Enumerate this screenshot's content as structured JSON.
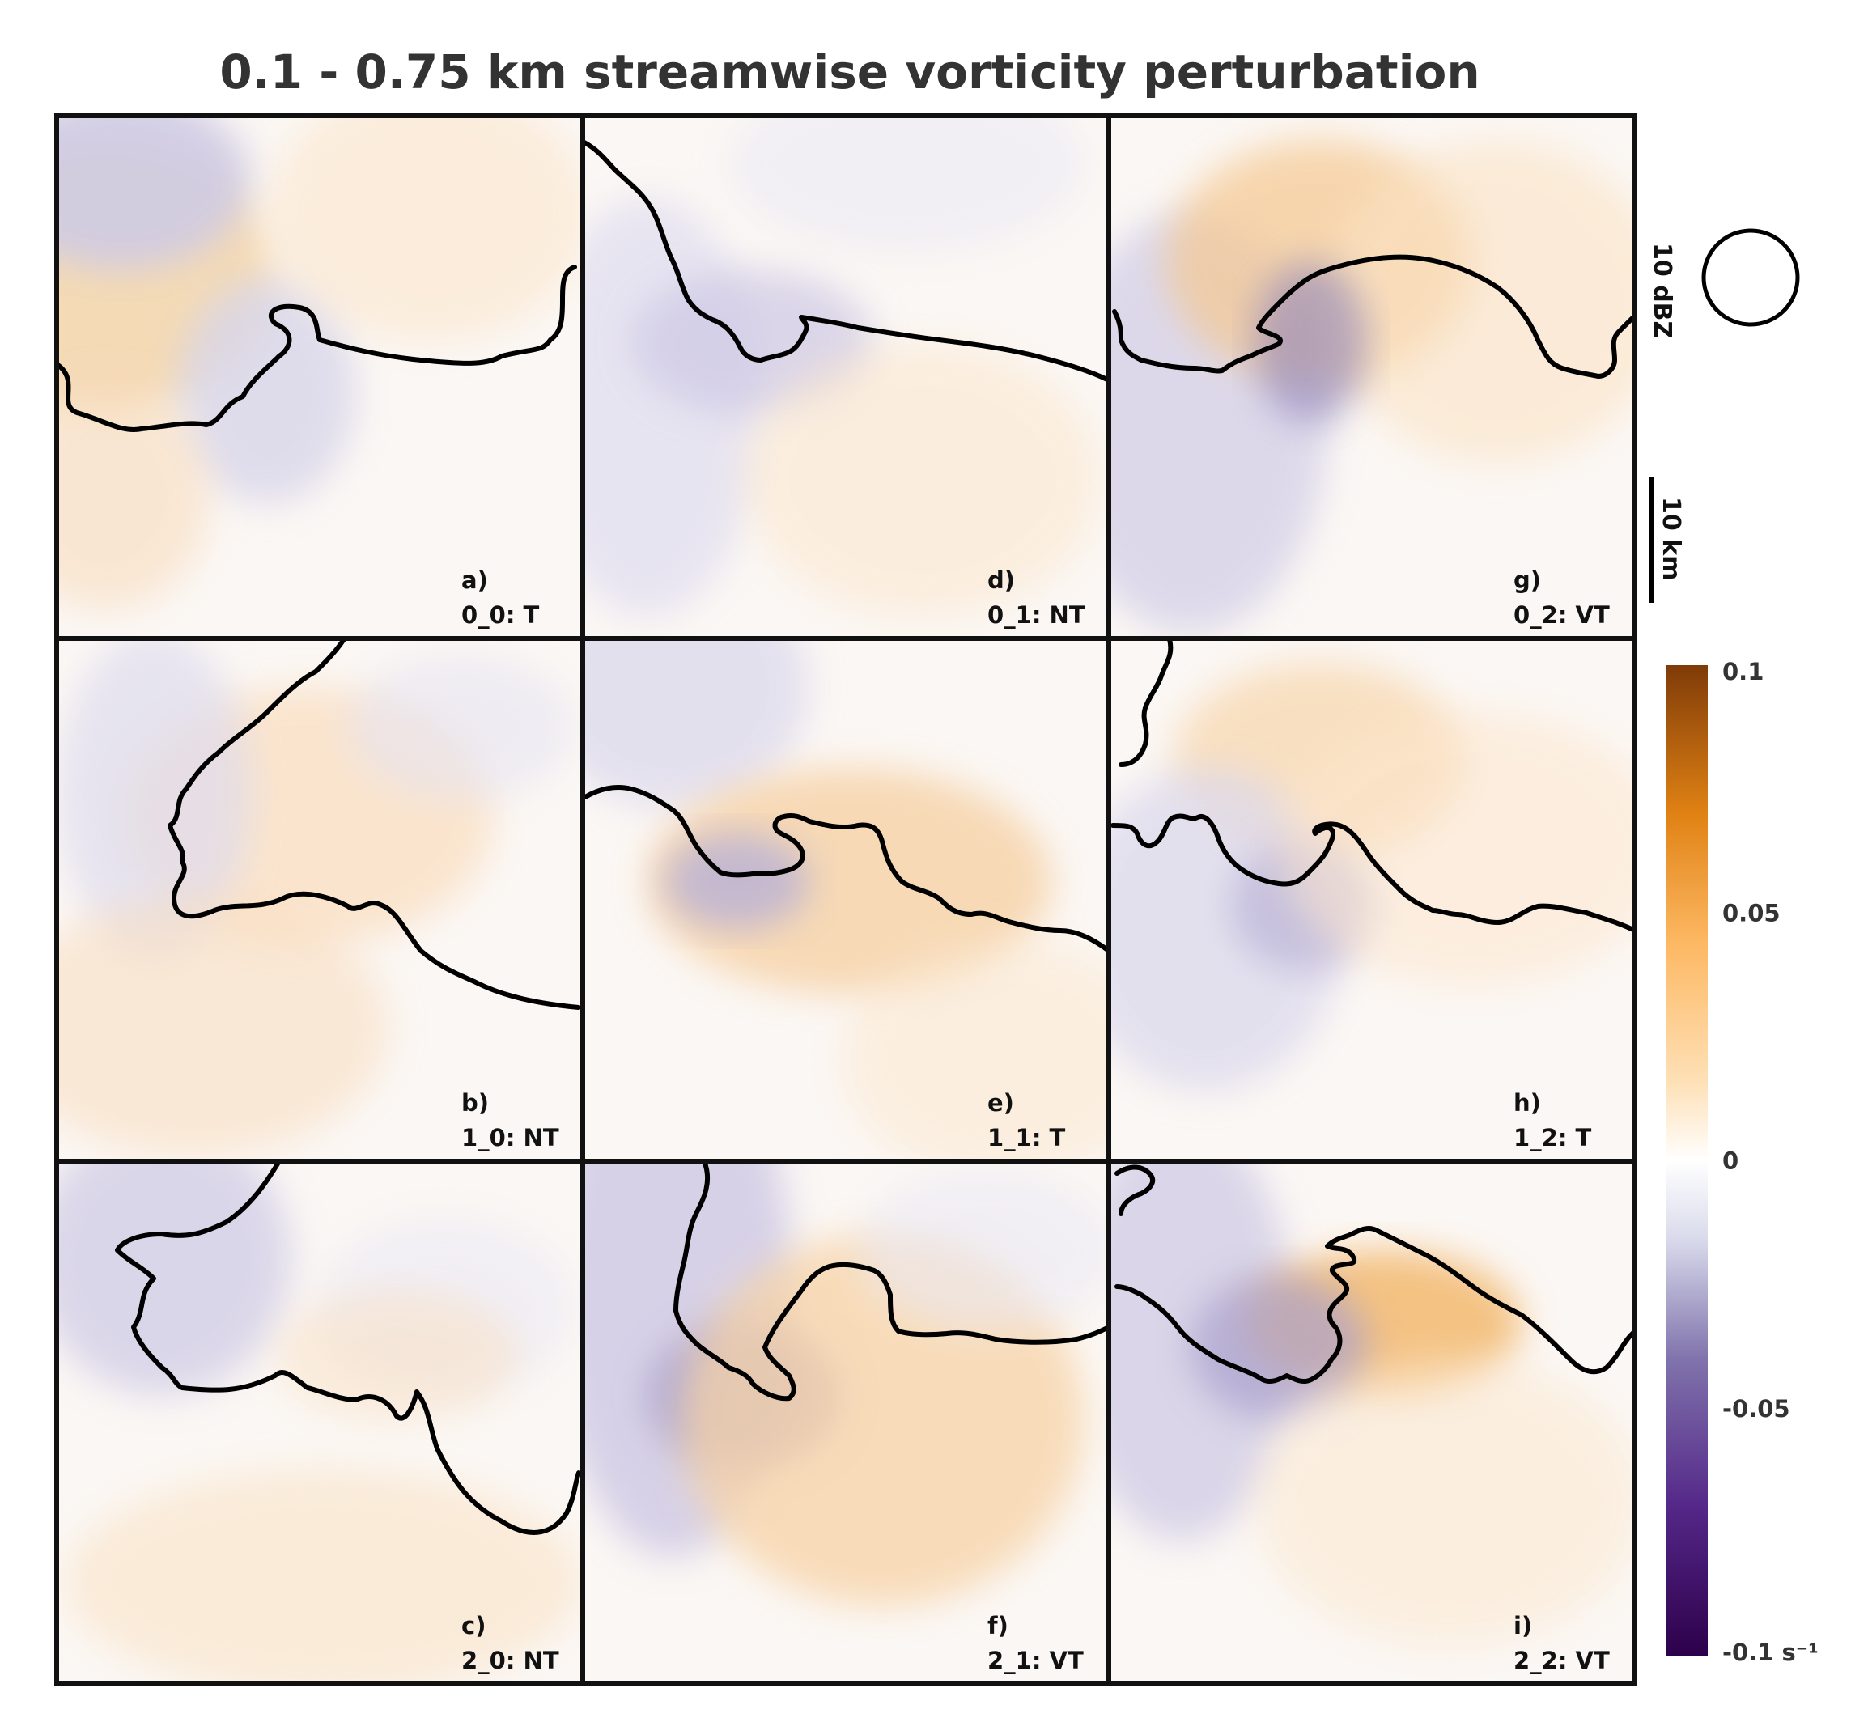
{
  "chart_data": {
    "type": "heatmap",
    "title": "0.1 - 0.75 km streamwise vorticity perturbation",
    "colorbar": {
      "min": -0.1,
      "max": 0.1,
      "ticks": [
        {
          "value": 0.1,
          "label": "0.1"
        },
        {
          "value": 0.05,
          "label": "0.05"
        },
        {
          "value": 0,
          "label": "0"
        },
        {
          "value": -0.05,
          "label": "-0.05"
        },
        {
          "value": -0.1,
          "label": "-0.1 s⁻¹"
        }
      ],
      "colors": {
        "max": "#7f3b08",
        "mid_high": "#e08214",
        "zero": "#ffffff",
        "mid_low": "#8073ac",
        "min": "#2d004b"
      }
    },
    "contour_label": "10 dBZ",
    "scale_label": "10 km",
    "panels": [
      {
        "id": "a)",
        "label": "0_0: T",
        "row": 0,
        "col": 0
      },
      {
        "id": "b)",
        "label": "1_0: NT",
        "row": 1,
        "col": 0
      },
      {
        "id": "c)",
        "label": "2_0: NT",
        "row": 2,
        "col": 0
      },
      {
        "id": "d)",
        "label": "0_1: NT",
        "row": 0,
        "col": 1
      },
      {
        "id": "e)",
        "label": "1_1: T",
        "row": 1,
        "col": 1
      },
      {
        "id": "f)",
        "label": "2_1: VT",
        "row": 2,
        "col": 1
      },
      {
        "id": "g)",
        "label": "0_2: VT",
        "row": 0,
        "col": 2
      },
      {
        "id": "h)",
        "label": "1_2: T",
        "row": 1,
        "col": 2
      },
      {
        "id": "i)",
        "label": "2_2: VT",
        "row": 2,
        "col": 2
      }
    ]
  }
}
